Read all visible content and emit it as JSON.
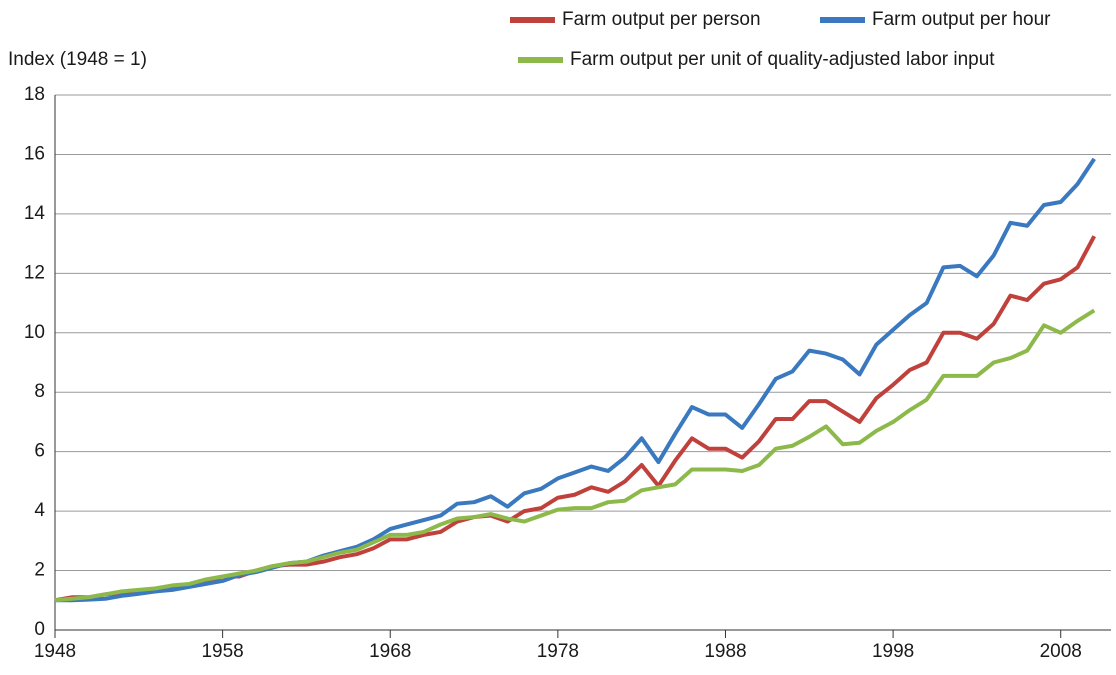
{
  "chart_data": {
    "type": "line",
    "y_label": "Index (1948 = 1)",
    "legend": "top-right",
    "grid": true,
    "x": [
      1948,
      1949,
      1950,
      1951,
      1952,
      1953,
      1954,
      1955,
      1956,
      1957,
      1958,
      1959,
      1960,
      1961,
      1962,
      1963,
      1964,
      1965,
      1966,
      1967,
      1968,
      1969,
      1970,
      1971,
      1972,
      1973,
      1974,
      1975,
      1976,
      1977,
      1978,
      1979,
      1980,
      1981,
      1982,
      1983,
      1984,
      1985,
      1986,
      1987,
      1988,
      1989,
      1990,
      1991,
      1992,
      1993,
      1994,
      1995,
      1996,
      1997,
      1998,
      1999,
      2000,
      2001,
      2002,
      2003,
      2004,
      2005,
      2006,
      2007,
      2008,
      2009,
      2010
    ],
    "series": [
      {
        "name": "Farm output per person",
        "color": "#c0413b",
        "values": [
          1.0,
          1.1,
          1.1,
          1.2,
          1.25,
          1.3,
          1.3,
          1.4,
          1.5,
          1.6,
          1.8,
          1.8,
          2.0,
          2.15,
          2.2,
          2.2,
          2.3,
          2.45,
          2.55,
          2.75,
          3.05,
          3.05,
          3.2,
          3.3,
          3.65,
          3.8,
          3.85,
          3.65,
          4.0,
          4.1,
          4.45,
          4.55,
          4.8,
          4.65,
          5.0,
          5.55,
          4.85,
          5.7,
          6.45,
          6.1,
          6.1,
          5.8,
          6.35,
          7.1,
          7.1,
          7.7,
          7.7,
          7.35,
          7.0,
          7.8,
          8.25,
          8.75,
          9.0,
          10.0,
          10.0,
          9.8,
          10.3,
          11.25,
          11.1,
          11.65,
          11.8,
          12.2,
          13.25
        ]
      },
      {
        "name": "Farm output per hour",
        "color": "#3a78bf",
        "values": [
          1.0,
          1.0,
          1.02,
          1.05,
          1.15,
          1.22,
          1.3,
          1.35,
          1.45,
          1.55,
          1.65,
          1.85,
          1.95,
          2.1,
          2.25,
          2.3,
          2.5,
          2.65,
          2.8,
          3.05,
          3.4,
          3.55,
          3.7,
          3.85,
          4.25,
          4.3,
          4.5,
          4.15,
          4.6,
          4.75,
          5.1,
          5.3,
          5.5,
          5.35,
          5.8,
          6.45,
          5.65,
          6.6,
          7.5,
          7.25,
          7.25,
          6.8,
          7.6,
          8.45,
          8.7,
          9.4,
          9.3,
          9.1,
          8.6,
          9.6,
          10.1,
          10.6,
          11.0,
          12.2,
          12.25,
          11.9,
          12.6,
          13.7,
          13.6,
          14.3,
          14.4,
          15.0,
          15.85
        ]
      },
      {
        "name": "Farm output per unit of quality-adjusted labor input",
        "color": "#8db94a",
        "values": [
          1.0,
          1.05,
          1.1,
          1.2,
          1.3,
          1.35,
          1.4,
          1.5,
          1.55,
          1.7,
          1.8,
          1.9,
          2.0,
          2.15,
          2.25,
          2.3,
          2.45,
          2.6,
          2.7,
          2.95,
          3.2,
          3.2,
          3.3,
          3.55,
          3.75,
          3.8,
          3.9,
          3.75,
          3.65,
          3.85,
          4.05,
          4.1,
          4.1,
          4.3,
          4.35,
          4.7,
          4.8,
          4.9,
          5.4,
          5.4,
          5.4,
          5.35,
          5.55,
          6.1,
          6.2,
          6.5,
          6.85,
          6.25,
          6.3,
          6.7,
          7.0,
          7.4,
          7.75,
          8.55,
          8.55,
          8.55,
          9.0,
          9.15,
          9.4,
          10.25,
          10.0,
          10.4,
          10.75
        ]
      }
    ],
    "xlim": [
      1948,
      2011
    ],
    "xticks": [
      1948,
      1958,
      1968,
      1978,
      1988,
      1998,
      2008
    ],
    "ylim": [
      0,
      18
    ],
    "yticks": [
      0,
      2,
      4,
      6,
      8,
      10,
      12,
      14,
      16,
      18
    ]
  }
}
